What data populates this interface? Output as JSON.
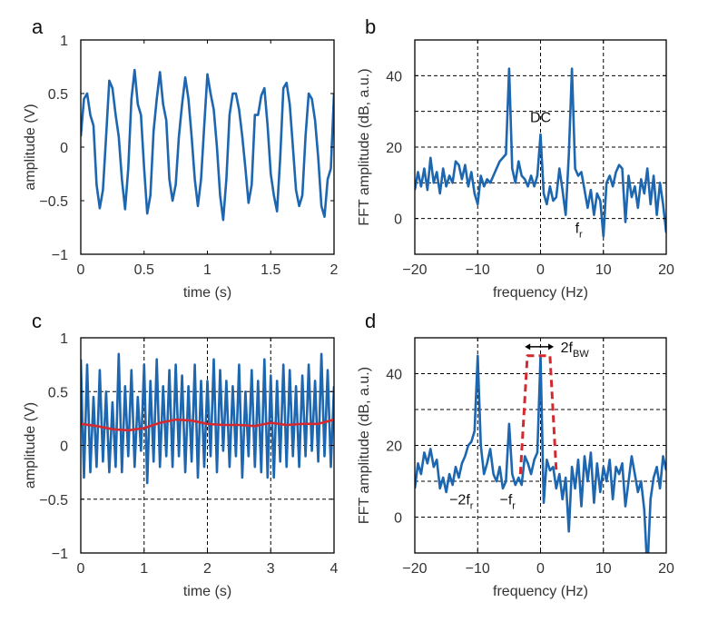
{
  "colors": {
    "series": "#1d66b0",
    "red": "#d42a2f",
    "grid": "#000000"
  },
  "chart_data": [
    {
      "panel": "a",
      "type": "line",
      "xlabel": "time (s)",
      "ylabel": "amplitude (V)",
      "xlim": [
        0,
        2
      ],
      "ylim": [
        -1,
        1
      ],
      "grid": false,
      "xticks": [
        0,
        0.5,
        1,
        1.5,
        2
      ],
      "xticklabels": [
        "0",
        "0.5",
        "1",
        "1.5",
        "2"
      ],
      "yticks": [
        1,
        0.5,
        0,
        -0.5,
        -1
      ],
      "yticklabels": [
        "1",
        "0.5",
        "0",
        "−0.5",
        "−1"
      ],
      "series": [
        {
          "color": "#1d66b0",
          "style": "solid",
          "x": [
            0,
            0.025,
            0.05,
            0.075,
            0.1,
            0.125,
            0.15,
            0.175,
            0.2,
            0.225,
            0.25,
            0.275,
            0.3,
            0.325,
            0.35,
            0.375,
            0.4,
            0.425,
            0.45,
            0.475,
            0.5,
            0.525,
            0.55,
            0.575,
            0.6,
            0.625,
            0.65,
            0.675,
            0.7,
            0.725,
            0.75,
            0.775,
            0.8,
            0.825,
            0.85,
            0.875,
            0.9,
            0.925,
            0.95,
            0.975,
            1.0,
            1.025,
            1.05,
            1.075,
            1.1,
            1.125,
            1.15,
            1.175,
            1.2,
            1.225,
            1.25,
            1.275,
            1.3,
            1.325,
            1.35,
            1.375,
            1.4,
            1.425,
            1.45,
            1.475,
            1.5,
            1.525,
            1.55,
            1.575,
            1.6,
            1.625,
            1.65,
            1.675,
            1.7,
            1.725,
            1.75,
            1.775,
            1.8,
            1.825,
            1.85,
            1.875,
            1.9,
            1.925,
            1.95,
            1.975,
            2.0
          ],
          "y": [
            0.1,
            0.45,
            0.5,
            0.3,
            0.2,
            -0.35,
            -0.57,
            -0.4,
            0.1,
            0.62,
            0.55,
            0.3,
            0.1,
            -0.3,
            -0.58,
            -0.2,
            0.45,
            0.72,
            0.4,
            0.3,
            -0.2,
            -0.62,
            -0.45,
            0.15,
            0.45,
            0.7,
            0.4,
            0.25,
            -0.3,
            -0.5,
            -0.35,
            0.1,
            0.4,
            0.65,
            0.45,
            0.1,
            -0.3,
            -0.55,
            -0.3,
            0.2,
            0.68,
            0.5,
            0.35,
            0.0,
            -0.45,
            -0.68,
            -0.3,
            0.3,
            0.5,
            0.5,
            0.35,
            0.1,
            -0.2,
            -0.52,
            -0.35,
            0.3,
            0.3,
            0.48,
            0.55,
            0.2,
            -0.25,
            -0.45,
            -0.6,
            -0.1,
            0.55,
            0.6,
            0.4,
            0.0,
            -0.4,
            -0.55,
            -0.45,
            0.1,
            0.5,
            0.45,
            0.25,
            -0.1,
            -0.55,
            -0.65,
            -0.3,
            -0.2,
            0.5
          ]
        }
      ],
      "annotations": []
    },
    {
      "panel": "b",
      "type": "line",
      "xlabel": "frequency (Hz)",
      "ylabel": "FFT amplitude (dB, a.u.)",
      "xlim": [
        -20,
        20
      ],
      "ylim": [
        -10,
        50
      ],
      "grid": true,
      "xticks": [
        -20,
        -10,
        0,
        10,
        20
      ],
      "xticklabels": [
        "−20",
        "−10",
        "0",
        "10",
        "20"
      ],
      "yticks": [
        40,
        20,
        0
      ],
      "yticklabels": [
        "40",
        "20",
        "0"
      ],
      "gridy": [
        0,
        10,
        20,
        30,
        40
      ],
      "series": [
        {
          "color": "#1d66b0",
          "style": "solid",
          "x": [
            -20,
            -19.5,
            -19,
            -18.5,
            -18,
            -17.5,
            -17,
            -16.5,
            -16,
            -15.5,
            -15,
            -14.5,
            -14,
            -13.5,
            -13,
            -12.5,
            -12,
            -11.5,
            -11,
            -10.5,
            -10,
            -9.5,
            -9,
            -8.5,
            -8,
            -7.5,
            -7,
            -6.5,
            -6,
            -5.5,
            -5,
            -4.5,
            -4,
            -3.5,
            -3,
            -2.5,
            -2,
            -1.5,
            -1,
            -0.5,
            0,
            0.5,
            1,
            1.5,
            2,
            2.5,
            3,
            3.5,
            4,
            4.5,
            5,
            5.5,
            6,
            6.5,
            7,
            7.5,
            8,
            8.5,
            9,
            9.5,
            10,
            10.5,
            11,
            11.5,
            12,
            12.5,
            13,
            13.5,
            14,
            14.5,
            15,
            15.5,
            16,
            16.5,
            17,
            17.5,
            18,
            18.5,
            19,
            19.5,
            20
          ],
          "y": [
            8,
            13,
            9,
            14,
            8,
            17,
            10,
            13,
            7,
            14,
            9,
            12,
            10,
            16,
            15,
            11,
            15,
            9,
            13,
            7,
            4,
            12,
            9,
            11,
            10,
            12,
            14,
            16,
            17,
            18,
            42,
            14,
            10,
            16,
            12,
            11,
            9,
            12,
            9,
            12,
            23.5,
            7,
            4,
            9,
            5,
            6,
            14,
            8,
            1,
            18,
            42,
            14,
            12,
            13,
            8,
            3,
            8,
            1,
            7,
            5,
            -5,
            10,
            12,
            9,
            13,
            15,
            14,
            -1,
            12,
            6,
            9,
            3,
            11,
            7,
            14,
            4,
            12,
            1,
            10,
            4,
            -4
          ]
        }
      ],
      "annotations": [
        {
          "text": "DC",
          "sub": "",
          "x": 0,
          "y": 27
        },
        {
          "text": "f",
          "sub": "r",
          "x": 5.5,
          "y": -4
        }
      ]
    },
    {
      "panel": "c",
      "type": "line",
      "xlabel": "time (s)",
      "ylabel": "amplitude (V)",
      "xlim": [
        0,
        4
      ],
      "ylim": [
        -1,
        1
      ],
      "grid": true,
      "xticks": [
        0,
        1,
        2,
        3,
        4
      ],
      "xticklabels": [
        "0",
        "1",
        "2",
        "3",
        "4"
      ],
      "yticks": [
        1,
        0.5,
        0,
        -0.5,
        -1
      ],
      "yticklabels": [
        "1",
        "0.5",
        "0",
        "−0.5",
        "−1"
      ],
      "gridy": [
        0.5,
        0,
        -0.5
      ],
      "series": [
        {
          "color": "#1d66b0",
          "style": "solid",
          "x": [
            0,
            0.05,
            0.1,
            0.15,
            0.2,
            0.25,
            0.3,
            0.35,
            0.4,
            0.45,
            0.5,
            0.55,
            0.6,
            0.65,
            0.7,
            0.75,
            0.8,
            0.85,
            0.9,
            0.95,
            1.0,
            1.05,
            1.1,
            1.15,
            1.2,
            1.25,
            1.3,
            1.35,
            1.4,
            1.45,
            1.5,
            1.55,
            1.6,
            1.65,
            1.7,
            1.75,
            1.8,
            1.85,
            1.9,
            1.95,
            2.0,
            2.05,
            2.1,
            2.15,
            2.2,
            2.25,
            2.3,
            2.35,
            2.4,
            2.45,
            2.5,
            2.55,
            2.6,
            2.65,
            2.7,
            2.75,
            2.8,
            2.85,
            2.9,
            2.95,
            3.0,
            3.05,
            3.1,
            3.15,
            3.2,
            3.25,
            3.3,
            3.35,
            3.4,
            3.45,
            3.5,
            3.55,
            3.6,
            3.65,
            3.7,
            3.75,
            3.8,
            3.85,
            3.9,
            3.95,
            4.0
          ],
          "y": [
            0.8,
            -0.3,
            0.75,
            -0.25,
            0.45,
            -0.2,
            0.7,
            -0.15,
            0.5,
            -0.25,
            0.4,
            -0.2,
            0.85,
            -0.25,
            0.55,
            -0.1,
            0.7,
            -0.2,
            0.45,
            -0.05,
            0.75,
            -0.35,
            0.6,
            -0.15,
            0.8,
            -0.2,
            0.55,
            -0.1,
            0.7,
            -0.2,
            0.75,
            -0.1,
            0.65,
            -0.25,
            0.55,
            -0.15,
            0.75,
            -0.3,
            0.6,
            -0.2,
            0.6,
            -0.1,
            0.8,
            -0.25,
            0.7,
            -0.05,
            0.6,
            -0.2,
            0.55,
            -0.1,
            0.75,
            -0.3,
            0.5,
            -0.1,
            0.7,
            -0.2,
            0.6,
            -0.25,
            0.8,
            -0.3,
            0.65,
            -0.3,
            0.6,
            -0.15,
            0.75,
            -0.2,
            0.7,
            -0.1,
            0.55,
            -0.2,
            0.65,
            -0.1,
            0.75,
            -0.05,
            0.6,
            -0.15,
            0.85,
            -0.1,
            0.7,
            -0.2,
            0.55
          ]
        },
        {
          "color": "#d42a2f",
          "style": "solid",
          "x": [
            0,
            0.25,
            0.5,
            0.75,
            1,
            1.25,
            1.5,
            1.75,
            2,
            2.25,
            2.5,
            2.75,
            3,
            3.25,
            3.5,
            3.75,
            4
          ],
          "y": [
            0.2,
            0.18,
            0.15,
            0.14,
            0.16,
            0.21,
            0.24,
            0.23,
            0.2,
            0.19,
            0.19,
            0.18,
            0.21,
            0.19,
            0.2,
            0.2,
            0.24
          ]
        }
      ],
      "annotations": []
    },
    {
      "panel": "d",
      "type": "line",
      "xlabel": "frequency (Hz)",
      "ylabel": "FFT amplitude (dB, a.u.)",
      "xlim": [
        -20,
        20
      ],
      "ylim": [
        -10,
        50
      ],
      "grid": true,
      "xticks": [
        -20,
        -10,
        0,
        10,
        20
      ],
      "xticklabels": [
        "−20",
        "−10",
        "0",
        "10",
        "20"
      ],
      "yticks": [
        40,
        20,
        0
      ],
      "yticklabels": [
        "40",
        "20",
        "0"
      ],
      "gridy": [
        0,
        10,
        20,
        30,
        40
      ],
      "series": [
        {
          "color": "#1d66b0",
          "style": "solid",
          "x": [
            -20,
            -19.5,
            -19,
            -18.5,
            -18,
            -17.5,
            -17,
            -16.5,
            -16,
            -15.5,
            -15,
            -14.5,
            -14,
            -13.5,
            -13,
            -12.5,
            -12,
            -11.5,
            -11,
            -10.5,
            -10,
            -9.5,
            -9,
            -8.5,
            -8,
            -7.5,
            -7,
            -6.5,
            -6,
            -5.5,
            -5,
            -4.5,
            -4,
            -3.5,
            -3,
            -2.5,
            -2,
            -1.5,
            -1,
            -0.5,
            0,
            0.5,
            1,
            1.5,
            2,
            2.5,
            3,
            3.5,
            4,
            4.5,
            5,
            5.5,
            6,
            6.5,
            7,
            7.5,
            8,
            8.5,
            9,
            9.5,
            10,
            10.5,
            11,
            11.5,
            12,
            12.5,
            13,
            13.5,
            14,
            14.5,
            15,
            15.5,
            16,
            16.5,
            17,
            17.5,
            18,
            18.5,
            19,
            19.5,
            20
          ],
          "y": [
            8,
            15,
            12,
            18,
            15,
            19,
            14,
            16,
            8,
            11,
            7,
            12,
            9,
            14,
            11,
            15,
            17,
            20,
            21,
            24,
            45,
            20,
            12,
            15,
            19,
            12,
            10,
            14,
            8,
            10,
            26,
            12,
            9,
            11,
            9,
            17,
            15,
            12,
            16,
            18,
            45,
            4,
            16,
            13,
            14,
            8,
            12,
            5,
            11,
            -4,
            14,
            8,
            16,
            3,
            17,
            10,
            18,
            4,
            15,
            7,
            14,
            10,
            16,
            5,
            14,
            12,
            15,
            3,
            10,
            17,
            12,
            7,
            10,
            2,
            -15,
            5,
            11,
            14,
            8,
            17,
            13
          ]
        },
        {
          "color": "#d42a2f",
          "style": "dashed",
          "x": [
            -3.2,
            -2.1,
            1.5,
            2.5
          ],
          "y": [
            12,
            45,
            45,
            13
          ]
        }
      ],
      "arrow": {
        "x": [
          -2.5,
          2.1
        ],
        "y": 47.5
      },
      "annotations": [
        {
          "text": "2f",
          "sub": "BW",
          "x": 3.2,
          "y": 46
        },
        {
          "text": "−2f",
          "sub": "r",
          "x": -14.5,
          "y": 3.5
        },
        {
          "text": "−f",
          "sub": "r",
          "x": -6.5,
          "y": 3.5
        }
      ]
    }
  ]
}
